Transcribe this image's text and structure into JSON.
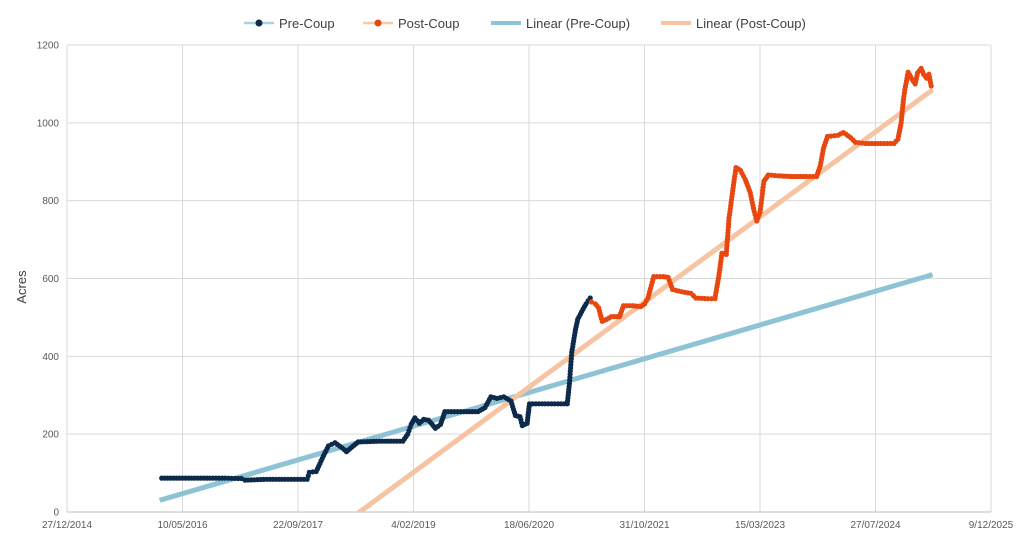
{
  "chart_data": {
    "type": "line",
    "title": "",
    "xlabel": "",
    "ylabel": "Acres",
    "ylim": [
      0,
      1200
    ],
    "yticks": [
      0,
      200,
      400,
      600,
      800,
      1000,
      1200
    ],
    "xlim": [
      "2014-12-27",
      "2025-12-09"
    ],
    "xtick_labels": [
      "27/12/2014",
      "10/05/2016",
      "22/09/2017",
      "4/02/2019",
      "18/06/2020",
      "31/10/2021",
      "15/03/2023",
      "27/07/2024",
      "9/12/2025"
    ],
    "grid": true,
    "legend_position": "top",
    "colors": {
      "pre_coup": "#0d2a4a",
      "post_coup": "#e8470f",
      "pre_coup_line": "#a7d3e3",
      "post_coup_line": "#f8c8a8",
      "linear_pre": "#8ec3d6",
      "linear_post": "#f7c4a3"
    },
    "series": [
      {
        "name": "Pre-Coup",
        "points": [
          [
            "2016-02-10",
            87
          ],
          [
            "2016-05-10",
            87
          ],
          [
            "2016-08-10",
            87
          ],
          [
            "2016-11-10",
            87
          ],
          [
            "2017-01-20",
            86
          ],
          [
            "2017-02-05",
            82
          ],
          [
            "2017-05-10",
            84
          ],
          [
            "2017-08-10",
            84
          ],
          [
            "2017-11-01",
            84
          ],
          [
            "2017-11-10",
            102
          ],
          [
            "2017-12-10",
            104
          ],
          [
            "2018-01-05",
            138
          ],
          [
            "2018-02-01",
            170
          ],
          [
            "2018-03-01",
            178
          ],
          [
            "2018-04-01",
            165
          ],
          [
            "2018-04-20",
            155
          ],
          [
            "2018-05-15",
            168
          ],
          [
            "2018-06-10",
            180
          ],
          [
            "2018-09-10",
            182
          ],
          [
            "2018-12-20",
            182
          ],
          [
            "2019-01-10",
            200
          ],
          [
            "2019-01-25",
            225
          ],
          [
            "2019-02-10",
            242
          ],
          [
            "2019-03-01",
            228
          ],
          [
            "2019-03-20",
            238
          ],
          [
            "2019-04-10",
            236
          ],
          [
            "2019-05-10",
            215
          ],
          [
            "2019-06-01",
            225
          ],
          [
            "2019-06-20",
            258
          ],
          [
            "2019-09-10",
            258
          ],
          [
            "2019-11-10",
            258
          ],
          [
            "2019-12-10",
            268
          ],
          [
            "2020-01-05",
            296
          ],
          [
            "2020-02-01",
            292
          ],
          [
            "2020-03-01",
            296
          ],
          [
            "2020-04-01",
            285
          ],
          [
            "2020-04-20",
            248
          ],
          [
            "2020-05-10",
            245
          ],
          [
            "2020-05-20",
            222
          ],
          [
            "2020-06-10",
            228
          ],
          [
            "2020-06-20",
            278
          ],
          [
            "2020-09-10",
            278
          ],
          [
            "2020-12-01",
            278
          ],
          [
            "2020-12-10",
            330
          ],
          [
            "2020-12-20",
            410
          ],
          [
            "2021-01-05",
            468
          ],
          [
            "2021-01-15",
            495
          ],
          [
            "2021-02-01",
            515
          ],
          [
            "2021-02-20",
            535
          ],
          [
            "2021-03-10",
            550
          ]
        ]
      },
      {
        "name": "Post-Coup",
        "points": [
          [
            "2021-03-15",
            540
          ],
          [
            "2021-04-01",
            535
          ],
          [
            "2021-04-15",
            525
          ],
          [
            "2021-05-01",
            490
          ],
          [
            "2021-05-20",
            495
          ],
          [
            "2021-06-10",
            502
          ],
          [
            "2021-07-15",
            502
          ],
          [
            "2021-08-01",
            530
          ],
          [
            "2021-09-10",
            530
          ],
          [
            "2021-10-15",
            528
          ],
          [
            "2021-11-01",
            535
          ],
          [
            "2021-11-15",
            550
          ],
          [
            "2021-12-10",
            605
          ],
          [
            "2022-01-20",
            605
          ],
          [
            "2022-02-10",
            603
          ],
          [
            "2022-03-01",
            572
          ],
          [
            "2022-04-10",
            566
          ],
          [
            "2022-05-20",
            562
          ],
          [
            "2022-06-10",
            550
          ],
          [
            "2022-08-01",
            548
          ],
          [
            "2022-09-01",
            548
          ],
          [
            "2022-09-20",
            615
          ],
          [
            "2022-10-01",
            665
          ],
          [
            "2022-10-20",
            662
          ],
          [
            "2022-11-01",
            756
          ],
          [
            "2022-11-15",
            818
          ],
          [
            "2022-12-01",
            885
          ],
          [
            "2022-12-20",
            878
          ],
          [
            "2023-01-10",
            855
          ],
          [
            "2023-02-01",
            820
          ],
          [
            "2023-02-15",
            780
          ],
          [
            "2023-03-01",
            748
          ],
          [
            "2023-03-15",
            770
          ],
          [
            "2023-04-01",
            850
          ],
          [
            "2023-04-20",
            866
          ],
          [
            "2023-06-01",
            864
          ],
          [
            "2023-08-01",
            862
          ],
          [
            "2023-10-01",
            862
          ],
          [
            "2023-11-15",
            862
          ],
          [
            "2023-12-01",
            890
          ],
          [
            "2023-12-15",
            935
          ],
          [
            "2024-01-01",
            965
          ],
          [
            "2024-02-15",
            968
          ],
          [
            "2024-03-10",
            975
          ],
          [
            "2024-04-10",
            962
          ],
          [
            "2024-05-01",
            950
          ],
          [
            "2024-06-15",
            947
          ],
          [
            "2024-09-01",
            947
          ],
          [
            "2024-10-15",
            947
          ],
          [
            "2024-11-01",
            958
          ],
          [
            "2024-11-15",
            1000
          ],
          [
            "2024-11-25",
            1060
          ],
          [
            "2024-12-01",
            1085
          ],
          [
            "2024-12-15",
            1130
          ],
          [
            "2025-01-01",
            1112
          ],
          [
            "2025-01-15",
            1100
          ],
          [
            "2025-01-25",
            1128
          ],
          [
            "2025-02-10",
            1140
          ],
          [
            "2025-02-20",
            1125
          ],
          [
            "2025-03-05",
            1115
          ],
          [
            "2025-03-15",
            1125
          ],
          [
            "2025-03-25",
            1095
          ]
        ]
      }
    ],
    "trendlines": [
      {
        "name": "Linear (Pre-Coup)",
        "start": [
          "2016-02-01",
          30
        ],
        "end": [
          "2025-03-31",
          610
        ]
      },
      {
        "name": "Linear (Post-Coup)",
        "start": [
          "2018-05-01",
          -20
        ],
        "end": [
          "2025-03-31",
          1085
        ]
      }
    ]
  }
}
